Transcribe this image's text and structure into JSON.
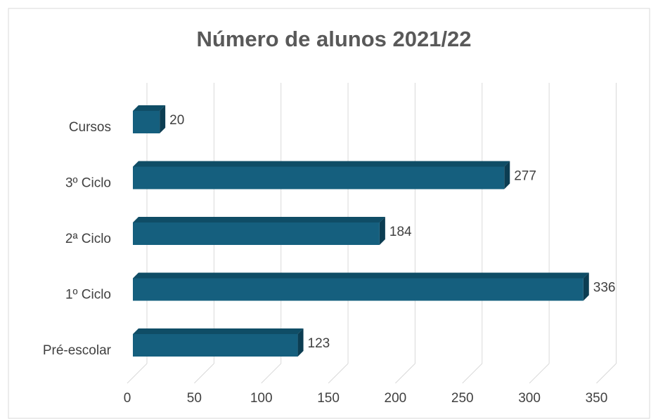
{
  "chart_data": {
    "type": "bar3d_horizontal",
    "title": "Número de alunos 2021/22",
    "categories": [
      "Pré-escolar",
      "1º Ciclo",
      "2ª Ciclo",
      "3º Ciclo",
      "Cursos"
    ],
    "values": [
      123,
      336,
      184,
      277,
      20
    ],
    "color": "#155f7e",
    "xlim": [
      0,
      350
    ],
    "xticks": [
      0,
      50,
      100,
      150,
      200,
      250,
      300,
      350
    ],
    "grid": true
  }
}
